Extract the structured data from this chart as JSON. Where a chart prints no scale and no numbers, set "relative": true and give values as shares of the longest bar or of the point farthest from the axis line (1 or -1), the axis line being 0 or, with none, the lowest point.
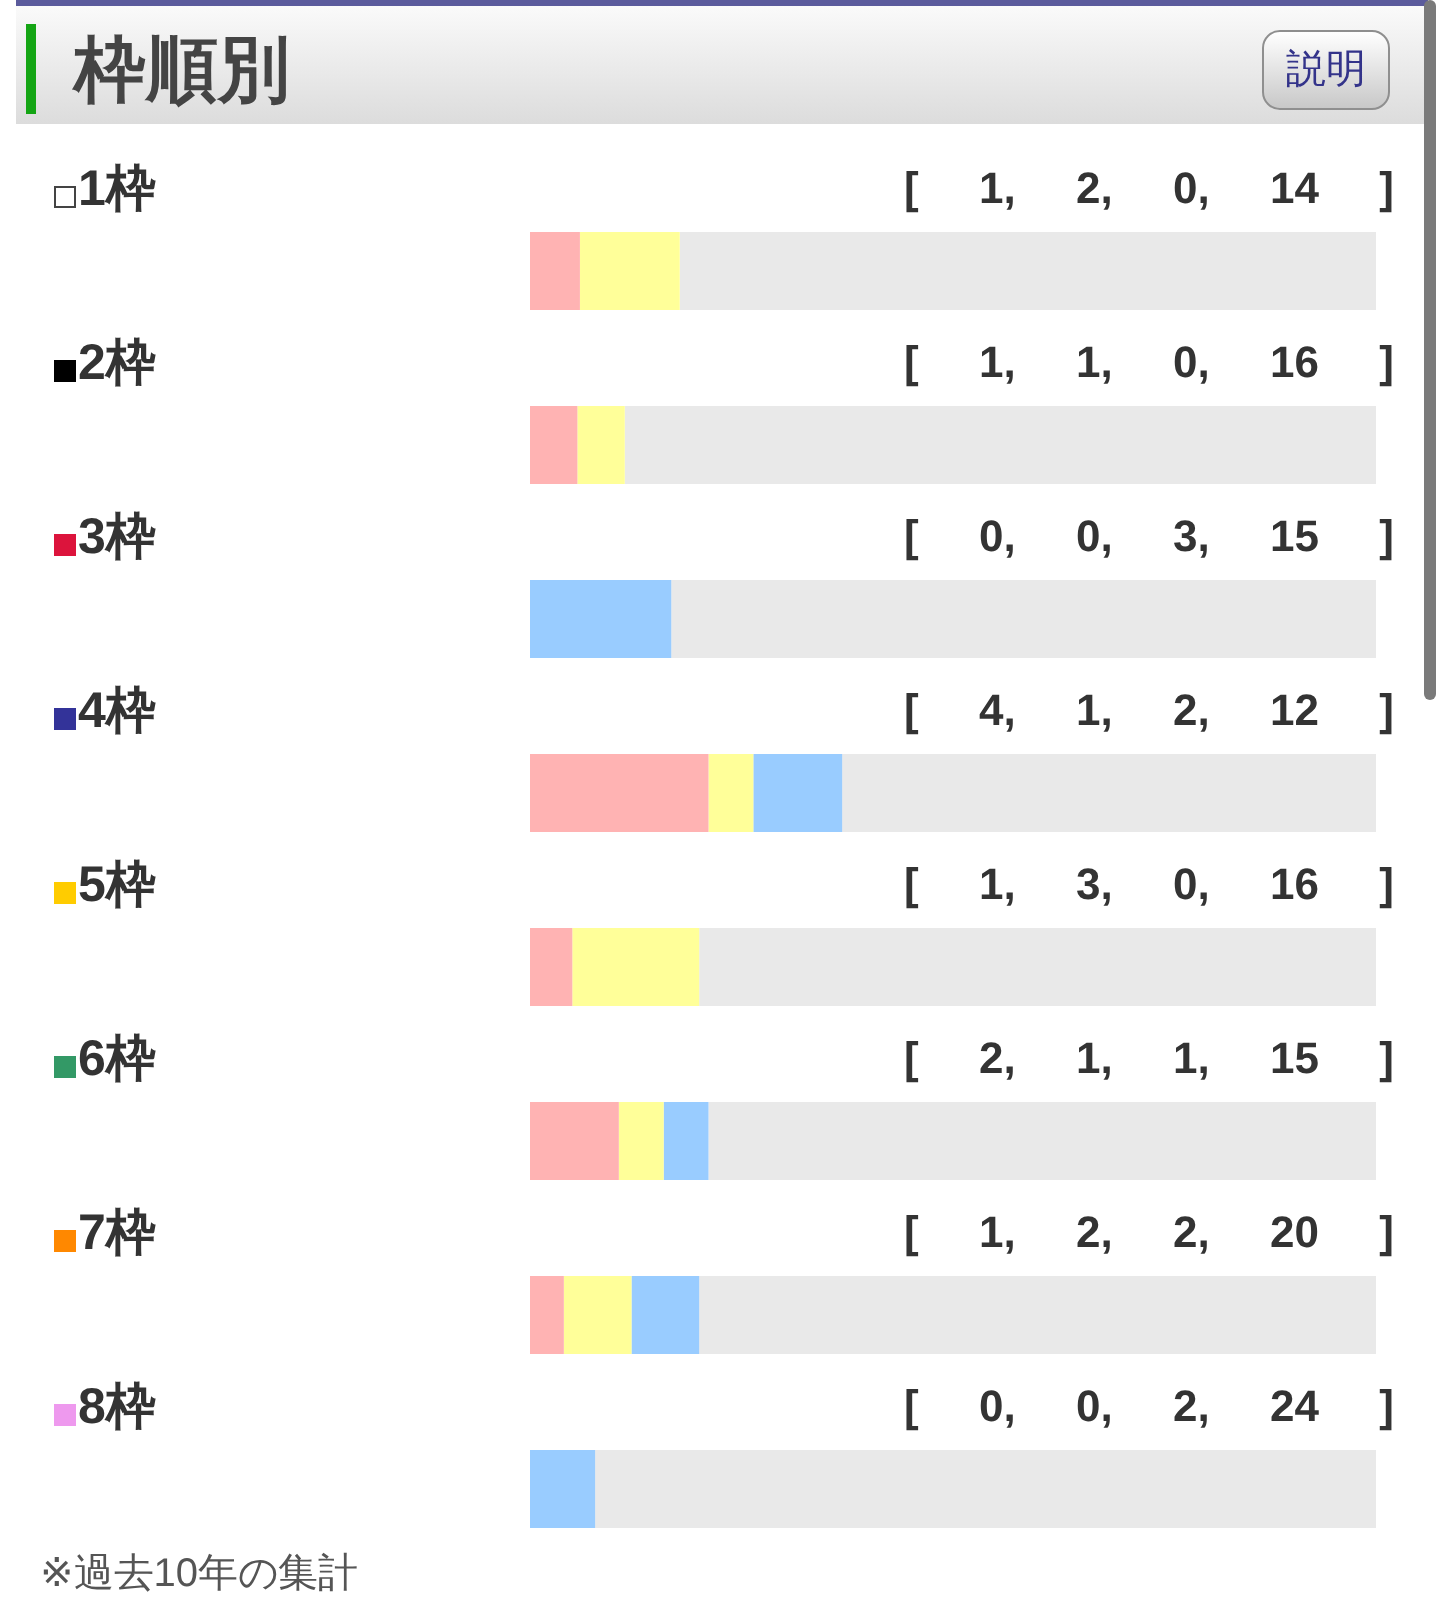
{
  "chart_data": {
    "type": "bar",
    "title": "枠順別",
    "orientation": "horizontal",
    "stacked": true,
    "relative": true,
    "categories": [
      "1枠",
      "2枠",
      "3枠",
      "4枠",
      "5枠",
      "6枠",
      "7枠",
      "8枠"
    ],
    "series": [
      {
        "color": "#ffb3b3",
        "values": [
          0.059,
          0.056,
          0,
          0.211,
          0.05,
          0.105,
          0.04,
          0
        ]
      },
      {
        "color": "#ffff99",
        "values": [
          0.118,
          0.056,
          0,
          0.053,
          0.15,
          0.053,
          0.08,
          0
        ]
      },
      {
        "color": "#99ccff",
        "values": [
          0,
          0,
          0.167,
          0.105,
          0,
          0.053,
          0.08,
          0.077
        ]
      },
      {
        "color": "#e9e9e9",
        "values": [
          0.823,
          0.888,
          0.833,
          0.631,
          0.8,
          0.789,
          0.8,
          0.923
        ]
      }
    ],
    "annotations": [
      "説明",
      "[ 1, 2, 0, 14 ]",
      "[ 1, 1, 0, 16 ]",
      "[ 0, 0, 3, 15 ]",
      "[ 4, 1, 2, 12 ]",
      "[ 1, 3, 0, 16 ]",
      "[ 2, 1, 1, 15 ]",
      "[ 1, 2, 2, 20 ]",
      "[ 0, 0, 2, 24 ]",
      "※過去10年の集計"
    ]
  }
}
